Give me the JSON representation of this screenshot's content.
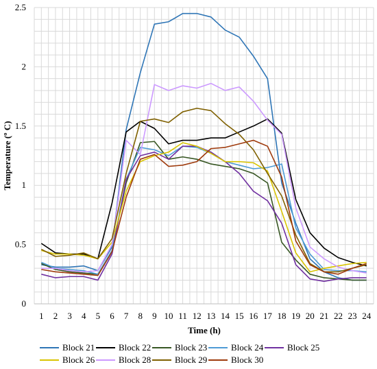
{
  "chart_data": {
    "type": "line",
    "title": "",
    "xlabel": "Time (h)",
    "ylabel": "Temperature (º C)",
    "x": [
      1,
      2,
      3,
      4,
      5,
      6,
      7,
      8,
      9,
      10,
      11,
      12,
      13,
      14,
      15,
      16,
      17,
      18,
      19,
      20,
      21,
      22,
      23,
      24
    ],
    "ylim": [
      0,
      2.5
    ],
    "yticks": [
      "0",
      "0.5",
      "1",
      "1.5",
      "2",
      "2.5"
    ],
    "grid": true,
    "legend_position": "bottom",
    "series": [
      {
        "name": "Block 21",
        "color": "#2e75b6",
        "values": [
          0.33,
          0.31,
          0.31,
          0.32,
          0.28,
          0.48,
          1.47,
          1.95,
          2.36,
          2.38,
          2.45,
          2.45,
          2.42,
          2.31,
          2.25,
          2.09,
          1.9,
          1.02,
          0.68,
          0.38,
          0.27,
          0.22,
          0.2,
          0.2
        ]
      },
      {
        "name": "Block 22",
        "color": "#000000",
        "values": [
          0.51,
          0.43,
          0.42,
          0.42,
          0.38,
          0.85,
          1.45,
          1.54,
          1.48,
          1.35,
          1.38,
          1.38,
          1.4,
          1.4,
          1.45,
          1.5,
          1.56,
          1.44,
          0.88,
          0.6,
          0.47,
          0.39,
          0.35,
          0.32
        ]
      },
      {
        "name": "Block 23",
        "color": "#375623",
        "values": [
          0.34,
          0.29,
          0.27,
          0.26,
          0.25,
          0.45,
          1.02,
          1.36,
          1.37,
          1.22,
          1.24,
          1.22,
          1.18,
          1.16,
          1.14,
          1.1,
          1.02,
          0.52,
          0.37,
          0.25,
          0.22,
          0.21,
          0.2,
          0.2
        ]
      },
      {
        "name": "Block 24",
        "color": "#4d9ad5",
        "values": [
          0.35,
          0.3,
          0.29,
          0.28,
          0.25,
          0.45,
          1.05,
          1.32,
          1.3,
          1.25,
          1.33,
          1.32,
          1.27,
          1.2,
          1.17,
          1.14,
          1.15,
          1.18,
          0.64,
          0.42,
          0.29,
          0.28,
          0.28,
          0.27
        ]
      },
      {
        "name": "Block 25",
        "color": "#7030a0",
        "values": [
          0.25,
          0.22,
          0.23,
          0.23,
          0.2,
          0.42,
          1.05,
          1.25,
          1.28,
          1.22,
          1.33,
          1.33,
          1.28,
          1.2,
          1.1,
          0.95,
          0.87,
          0.68,
          0.33,
          0.21,
          0.19,
          0.21,
          0.22,
          0.22
        ]
      },
      {
        "name": "Block 26",
        "color": "#d9c400",
        "values": [
          0.45,
          0.42,
          0.42,
          0.41,
          0.38,
          0.52,
          0.95,
          1.2,
          1.25,
          1.28,
          1.36,
          1.33,
          1.27,
          1.2,
          1.2,
          1.19,
          1.12,
          0.78,
          0.43,
          0.27,
          0.3,
          0.32,
          0.34,
          0.35
        ]
      },
      {
        "name": "Block 28",
        "color": "#cc99ff",
        "values": [
          0.3,
          0.3,
          0.28,
          0.27,
          0.28,
          0.5,
          1.38,
          1.26,
          1.85,
          1.8,
          1.84,
          1.82,
          1.86,
          1.8,
          1.83,
          1.71,
          1.55,
          1.43,
          0.81,
          0.48,
          0.38,
          0.31,
          0.28,
          0.26
        ]
      },
      {
        "name": "Block 29",
        "color": "#7f6000",
        "values": [
          0.46,
          0.4,
          0.41,
          0.43,
          0.38,
          0.55,
          1.1,
          1.54,
          1.56,
          1.53,
          1.62,
          1.65,
          1.63,
          1.52,
          1.43,
          1.3,
          1.1,
          0.91,
          0.58,
          0.34,
          0.27,
          0.27,
          0.3,
          0.33
        ]
      },
      {
        "name": "Block 30",
        "color": "#9e3a0c",
        "values": [
          0.29,
          0.27,
          0.26,
          0.25,
          0.24,
          0.44,
          0.9,
          1.22,
          1.26,
          1.16,
          1.17,
          1.2,
          1.31,
          1.32,
          1.35,
          1.38,
          1.33,
          1.07,
          0.53,
          0.33,
          0.27,
          0.25,
          0.3,
          0.34
        ]
      }
    ]
  }
}
